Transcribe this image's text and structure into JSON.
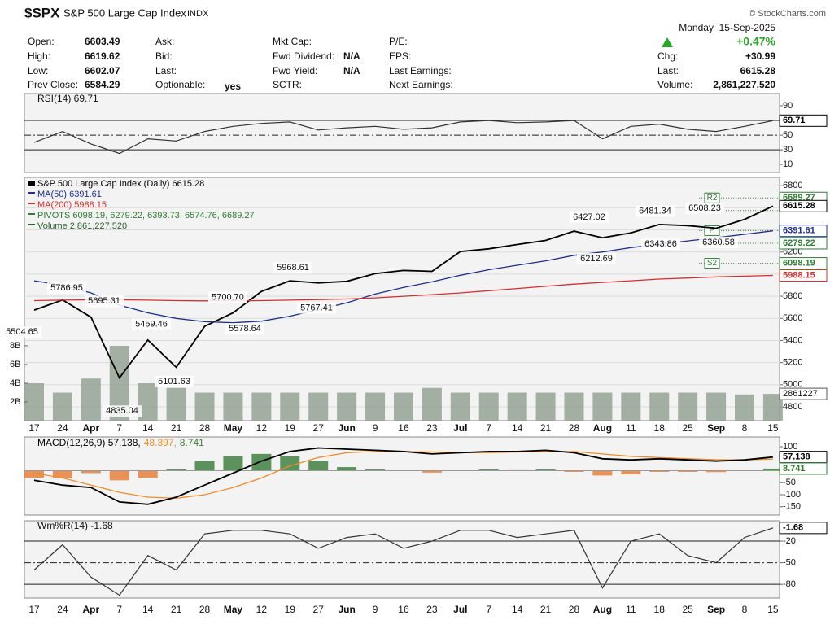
{
  "header": {
    "symbol": "$SPX",
    "name": "S&P 500 Large Cap Index",
    "exchange": "INDX",
    "source": "© StockCharts.com",
    "date": "Monday  15-Sep-2025",
    "change_pct": "+0.47%",
    "fields": [
      [
        {
          "label": "Open:",
          "value": "6603.49"
        },
        {
          "label": "High:",
          "value": "6619.62"
        },
        {
          "label": "Low:",
          "value": "6602.07"
        },
        {
          "label": "Prev Close:",
          "value": "6584.29"
        }
      ],
      [
        {
          "label": "Ask:"
        },
        {
          "label": "Bid:"
        },
        {
          "label": "Last:"
        },
        {
          "label": "Optionable:",
          "value": "yes"
        }
      ],
      [
        {
          "label": "Mkt Cap:"
        },
        {
          "label": "Fwd Dividend:",
          "value": "N/A"
        },
        {
          "label": "Fwd Yield:",
          "value": "N/A"
        },
        {
          "label": "SCTR:"
        }
      ],
      [
        {
          "label": "P/E:"
        },
        {
          "label": "EPS:"
        },
        {
          "label": "Last Earnings:"
        },
        {
          "label": "Next Earnings:"
        }
      ],
      [
        {
          "label": "Chg:",
          "value": "+30.99"
        },
        {
          "label": "Last:",
          "value": "6615.28"
        },
        {
          "label": "Volume:",
          "value": "2,861,227,520"
        }
      ]
    ]
  },
  "chart_data": [
    {
      "type": "line",
      "title": "RSI(14) 69.71",
      "ylim": [
        -1,
        106.7
      ],
      "yticks": [
        10,
        30,
        50,
        70,
        90
      ],
      "reference_lines": [
        70,
        50,
        30
      ],
      "tags": [
        69.71
      ],
      "tag_colors": [
        "#000000"
      ],
      "series": [
        {
          "color": "#333333",
          "values": [
            40,
            55,
            38,
            25,
            45,
            42,
            55,
            62,
            66,
            68,
            57,
            60,
            62,
            58,
            60,
            68,
            70,
            67,
            68,
            70,
            45,
            62,
            65,
            58,
            55,
            62,
            69.71
          ]
        }
      ]
    },
    {
      "type": "line",
      "categories": [
        "17",
        "24",
        "Apr",
        "7",
        "14",
        "21",
        "28",
        "May",
        "12",
        "19",
        "27",
        "Jun",
        "9",
        "16",
        "23",
        "Jul",
        "7",
        "14",
        "21",
        "28",
        "Aug",
        "11",
        "18",
        "25",
        "Sep",
        "8",
        "15"
      ],
      "ylim": [
        4675,
        6875
      ],
      "yticks": [
        4800,
        5000,
        5200,
        5400,
        5600,
        5800,
        6000,
        6200,
        6400,
        6600,
        6800
      ],
      "grid": true,
      "series": [
        {
          "name": "S&P 500 Large Cap Index (Daily) 6615.28",
          "color": "#000000",
          "values": [
            5675,
            5767,
            5611,
            5062,
            5405,
            5158,
            5528,
            5650,
            5844,
            5940,
            5921,
            5935,
            6005,
            6033,
            6025,
            6205,
            6229,
            6268,
            6305,
            6389,
            6329,
            6373,
            6449,
            6439,
            6415,
            6495,
            6615.28
          ]
        },
        {
          "name": "MA(50) 6391.61",
          "color": "#1f2f8f",
          "values": [
            5940,
            5900,
            5830,
            5720,
            5650,
            5600,
            5570,
            5560,
            5575,
            5620,
            5680,
            5740,
            5820,
            5880,
            5930,
            5990,
            6040,
            6080,
            6120,
            6170,
            6200,
            6240,
            6270,
            6300,
            6330,
            6360,
            6391.61
          ]
        },
        {
          "name": "MA(200) 5988.15",
          "color": "#d32f2f",
          "values": [
            5760,
            5765,
            5768,
            5768,
            5765,
            5760,
            5758,
            5757,
            5760,
            5765,
            5770,
            5775,
            5785,
            5800,
            5815,
            5830,
            5850,
            5870,
            5890,
            5910,
            5925,
            5940,
            5955,
            5965,
            5975,
            5982,
            5988.15
          ]
        }
      ],
      "pivots": {
        "name": "PIVOTS 6098.19, 6279.22, 6393.73, 6574.76, 6689.27",
        "color": "#2e7d32",
        "values": [
          6098.19,
          6279.22,
          6393.73,
          6574.76,
          6689.27
        ],
        "labels": [
          "S2",
          null,
          "P",
          null,
          "R2"
        ]
      },
      "volume": {
        "name": "Volume 2,861,227,520",
        "color": "#8f9d8f",
        "ylim": [
          0,
          26
        ],
        "yticks": [
          {
            "value": 2,
            "label": "2B"
          },
          {
            "value": 4,
            "label": "4B"
          },
          {
            "value": 6,
            "label": "6B"
          },
          {
            "value": 8,
            "label": "8B"
          }
        ],
        "values": [
          4,
          3,
          4.5,
          8,
          4,
          3.5,
          3,
          3,
          3,
          3,
          3,
          3,
          3,
          3,
          3.5,
          3,
          3,
          3,
          3,
          3,
          3,
          3,
          3,
          3,
          3,
          2.8,
          2.86
        ],
        "tag": {
          "value": 2.861227,
          "label": "2861227"
        }
      },
      "annotations": [
        5504.65,
        5786.95,
        5695.31,
        5459.46,
        4835.04,
        5101.63,
        {
          "value": 5700.7,
          "label": "5700.70"
        },
        5578.64,
        5968.61,
        5767.41,
        6427.02,
        6212.69,
        6481.34,
        6343.86,
        6508.23,
        6360.58
      ],
      "tags": [
        6689.27,
        6615.28,
        6391.61,
        6279.22,
        6098.19,
        5988.15
      ],
      "tag_colors": [
        "#2e7d32",
        "#000000",
        "#1f2f8f",
        "#2e7d32",
        "#2e7d32",
        "#d32f2f"
      ]
    },
    {
      "type": "line",
      "title_parts": [
        "MACD(12,26,9) 57.138,",
        "48.397,",
        "8.741"
      ],
      "ylim": [
        -184.7,
        140.7
      ],
      "yticks": [
        100,
        50,
        0,
        -50,
        -100,
        -150
      ],
      "tags": [
        57.138,
        8.741
      ],
      "tag_colors": [
        "#000000",
        "#2e7d32"
      ],
      "series": [
        {
          "color": "#000000",
          "values": [
            -40,
            -60,
            -70,
            -130,
            -140,
            -110,
            -60,
            -10,
            40,
            80,
            95,
            90,
            85,
            80,
            70,
            75,
            80,
            80,
            85,
            75,
            50,
            45,
            50,
            45,
            40,
            45,
            57.138
          ]
        },
        {
          "color": "#f08c28",
          "values": [
            -10,
            -30,
            -60,
            -90,
            -110,
            -115,
            -100,
            -70,
            -30,
            20,
            55,
            75,
            80,
            80,
            78,
            75,
            75,
            78,
            80,
            80,
            70,
            60,
            55,
            50,
            46,
            45,
            48.397
          ]
        },
        {
          "type": "bar",
          "color": "#3f7f3f",
          "negative_color": "#e8803a",
          "values": [
            -30,
            -30,
            -10,
            -40,
            -30,
            5,
            40,
            60,
            70,
            60,
            40,
            15,
            5,
            0,
            -8,
            0,
            5,
            2,
            5,
            -5,
            -20,
            -15,
            -5,
            -5,
            -6,
            0,
            8.741
          ]
        }
      ]
    },
    {
      "type": "line",
      "title": "Wm%R(14) -1.68",
      "ylim": [
        -99,
        8.3
      ],
      "yticks": [
        -20,
        -50,
        -80
      ],
      "reference_lines": [
        -20,
        -50,
        -80
      ],
      "tags": [
        -1.68
      ],
      "tag_colors": [
        "#000000"
      ],
      "series": [
        {
          "color": "#333333",
          "values": [
            -60,
            -25,
            -70,
            -95,
            -40,
            -60,
            -10,
            -5,
            -5,
            -10,
            -30,
            -15,
            -10,
            -30,
            -20,
            -5,
            -5,
            -15,
            -10,
            -5,
            -85,
            -20,
            -10,
            -40,
            -50,
            -15,
            -1.68
          ]
        }
      ]
    }
  ]
}
